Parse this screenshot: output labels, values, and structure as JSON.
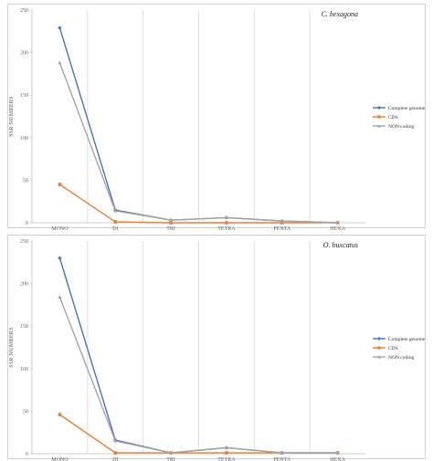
{
  "colors": {
    "complete": "#4472C4",
    "cds": "#ED7D31",
    "noncoding": "#A5A5A5",
    "grid": "#d9d9d9",
    "axis": "#bfbfbf"
  },
  "chart_data": [
    {
      "type": "line",
      "title": "C. hexagona",
      "ylabel": "SSR NUMBERS",
      "xlabel": "",
      "categories": [
        "MONO",
        "DI",
        "TRI",
        "TETRA",
        "PENTA",
        "HEXA"
      ],
      "ylim": [
        0,
        250
      ],
      "yticks": [
        0,
        50,
        100,
        150,
        200,
        250
      ],
      "legend_position": "right",
      "series": [
        {
          "name": "Complete genome",
          "values": [
            229,
            15,
            3,
            6,
            2,
            0
          ]
        },
        {
          "name": "CDS",
          "values": [
            45,
            1,
            0,
            0,
            0,
            0
          ]
        },
        {
          "name": "NON coding",
          "values": [
            188,
            14,
            3,
            6,
            2,
            0
          ]
        }
      ]
    },
    {
      "type": "line",
      "title": "O. buxcatus",
      "ylabel": "SSR NUMBERS",
      "xlabel": "",
      "categories": [
        "MONO",
        "DI",
        "TRI",
        "TETRA",
        "PENTA",
        "HEXA"
      ],
      "ylim": [
        0,
        250
      ],
      "yticks": [
        0,
        50,
        100,
        150,
        200,
        250
      ],
      "legend_position": "right",
      "series": [
        {
          "name": "Complete genome",
          "values": [
            230,
            16,
            1,
            7,
            1,
            1
          ]
        },
        {
          "name": "CDS",
          "values": [
            46,
            1,
            1,
            1,
            1,
            1
          ]
        },
        {
          "name": "NON coding",
          "values": [
            184,
            15,
            1,
            7,
            1,
            1
          ]
        }
      ]
    }
  ]
}
